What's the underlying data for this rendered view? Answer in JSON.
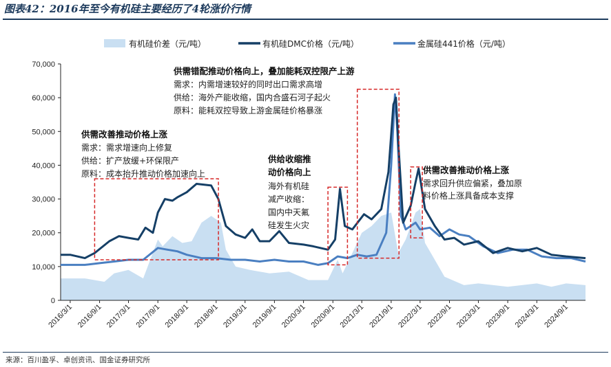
{
  "title": "图表42：2016年至今有机硅主要经历了4轮涨价行情",
  "source": "来源：百川盈孚、卓创资讯、国金证券研究所",
  "colors": {
    "spread": "#c9dff2",
    "dmc": "#153f66",
    "silicon": "#4a7fc1",
    "box": "#d62828",
    "axis": "#222222",
    "title": "#1c3a5c"
  },
  "annotations": [
    {
      "heading": "供需错配推动价格向上，叠加能耗双控限产上游",
      "lines": [
        "需求：内需增速较好的同时出口需求高增",
        "供给：海外产能收缩，国内合盛石河子起火",
        "原料：能耗双控导致上游金属硅价格暴涨"
      ]
    },
    {
      "heading": "供需改善推动价格上涨",
      "lines": [
        "需求：需求增速向上修复",
        "供给：扩产放缓+环保限产",
        "原料：成本抬升推动价格加速向上"
      ]
    },
    {
      "heading": "供给收缩推 动价格向上",
      "heading_lines": [
        "供给收缩推",
        "动价格向上"
      ],
      "lines": [
        "海外有机硅",
        "减产收缩：",
        "国内中天氟",
        "硅发生火灾"
      ]
    },
    {
      "heading": "供需改善推动价格上涨",
      "lines": [
        "需求回升供应偏紧，叠加原",
        "料价格上涨具备成本支撑"
      ]
    }
  ],
  "chart_data": {
    "type": "line",
    "title": "",
    "xlabel": "",
    "ylabel": "",
    "ylim": [
      0,
      70000
    ],
    "yticks": [
      "0",
      "10,000",
      "20,000",
      "30,000",
      "40,000",
      "50,000",
      "60,000",
      "70,000"
    ],
    "ytick_values": [
      0,
      10000,
      20000,
      30000,
      40000,
      50000,
      60000,
      70000
    ],
    "xticks": [
      "2016/3/1",
      "2016/9/1",
      "2017/3/1",
      "2017/9/1",
      "2018/3/1",
      "2018/9/1",
      "2019/3/1",
      "2019/9/1",
      "2020/3/1",
      "2020/9/1",
      "2021/3/1",
      "2021/9/1",
      "2022/3/1",
      "2022/9/1",
      "2023/3/1",
      "2023/9/1",
      "2024/3/1",
      "2024/9/1"
    ],
    "xrange": [
      "2016/1/1",
      "2024/12/31"
    ],
    "grid": false,
    "legend_position": "top",
    "series": [
      {
        "name": "有机硅价差（元/吨）",
        "kind": "area",
        "points": [
          [
            "2016/1/1",
            6500
          ],
          [
            "2016/6/1",
            6500
          ],
          [
            "2016/10/1",
            5500
          ],
          [
            "2016/12/1",
            8000
          ],
          [
            "2017/3/1",
            9000
          ],
          [
            "2017/6/1",
            6500
          ],
          [
            "2017/7/15",
            12000
          ],
          [
            "2017/9/1",
            18000
          ],
          [
            "2017/10/1",
            16000
          ],
          [
            "2017/12/1",
            19000
          ],
          [
            "2018/2/1",
            17000
          ],
          [
            "2018/4/1",
            17500
          ],
          [
            "2018/6/1",
            23000
          ],
          [
            "2018/8/1",
            25000
          ],
          [
            "2018/10/1",
            23000
          ],
          [
            "2018/11/1",
            15000
          ],
          [
            "2019/1/1",
            10000
          ],
          [
            "2019/4/1",
            9000
          ],
          [
            "2019/8/1",
            8000
          ],
          [
            "2019/12/1",
            8500
          ],
          [
            "2020/4/1",
            6000
          ],
          [
            "2020/8/1",
            6000
          ],
          [
            "2020/10/1",
            12000
          ],
          [
            "2020/11/1",
            8000
          ],
          [
            "2021/1/1",
            14000
          ],
          [
            "2021/3/1",
            20000
          ],
          [
            "2021/5/1",
            22000
          ],
          [
            "2021/7/1",
            25000
          ],
          [
            "2021/9/1",
            26000
          ],
          [
            "2021/10/15",
            14000
          ],
          [
            "2021/12/1",
            18000
          ],
          [
            "2022/2/1",
            26000
          ],
          [
            "2022/3/1",
            27000
          ],
          [
            "2022/4/1",
            17000
          ],
          [
            "2022/6/1",
            12000
          ],
          [
            "2022/8/1",
            7000
          ],
          [
            "2022/12/1",
            4500
          ],
          [
            "2023/3/1",
            5000
          ],
          [
            "2023/9/1",
            4000
          ],
          [
            "2024/3/1",
            5000
          ],
          [
            "2024/6/1",
            4000
          ],
          [
            "2024/9/1",
            5000
          ],
          [
            "2024/12/31",
            4500
          ]
        ]
      },
      {
        "name": "有机硅DMC价格（元/吨）",
        "kind": "line",
        "points": [
          [
            "2016/1/1",
            13500
          ],
          [
            "2016/3/1",
            13500
          ],
          [
            "2016/6/1",
            12500
          ],
          [
            "2016/8/1",
            14000
          ],
          [
            "2016/11/1",
            17500
          ],
          [
            "2017/1/1",
            19000
          ],
          [
            "2017/3/1",
            18500
          ],
          [
            "2017/5/1",
            18000
          ],
          [
            "2017/6/15",
            21500
          ],
          [
            "2017/8/1",
            20000
          ],
          [
            "2017/9/1",
            26000
          ],
          [
            "2017/10/15",
            30000
          ],
          [
            "2017/12/1",
            29500
          ],
          [
            "2018/1/1",
            30500
          ],
          [
            "2018/3/1",
            32000
          ],
          [
            "2018/5/1",
            34500
          ],
          [
            "2018/8/1",
            34000
          ],
          [
            "2018/9/15",
            30000
          ],
          [
            "2018/11/1",
            22000
          ],
          [
            "2019/1/1",
            19500
          ],
          [
            "2019/3/1",
            18500
          ],
          [
            "2019/4/15",
            21000
          ],
          [
            "2019/6/1",
            17500
          ],
          [
            "2019/8/1",
            17500
          ],
          [
            "2019/10/1",
            20500
          ],
          [
            "2019/12/1",
            17000
          ],
          [
            "2020/3/1",
            16500
          ],
          [
            "2020/5/1",
            16000
          ],
          [
            "2020/8/1",
            15000
          ],
          [
            "2020/9/15",
            18000
          ],
          [
            "2020/10/15",
            33000
          ],
          [
            "2020/11/15",
            22000
          ],
          [
            "2021/1/1",
            21000
          ],
          [
            "2021/3/15",
            25500
          ],
          [
            "2021/5/1",
            24000
          ],
          [
            "2021/7/1",
            27000
          ],
          [
            "2021/8/15",
            38000
          ],
          [
            "2021/9/15",
            58000
          ],
          [
            "2021/10/1",
            60000
          ],
          [
            "2021/10/15",
            47000
          ],
          [
            "2021/11/15",
            23000
          ],
          [
            "2022/1/1",
            28000
          ],
          [
            "2022/2/1",
            35000
          ],
          [
            "2022/2/20",
            39000
          ],
          [
            "2022/4/1",
            27000
          ],
          [
            "2022/6/1",
            22000
          ],
          [
            "2022/8/1",
            18000
          ],
          [
            "2022/10/1",
            18500
          ],
          [
            "2022/12/1",
            16500
          ],
          [
            "2023/3/1",
            17500
          ],
          [
            "2023/6/1",
            14000
          ],
          [
            "2023/9/1",
            15500
          ],
          [
            "2023/12/1",
            14500
          ],
          [
            "2024/3/1",
            15500
          ],
          [
            "2024/6/1",
            13500
          ],
          [
            "2024/9/1",
            13000
          ],
          [
            "2024/12/31",
            12500
          ]
        ]
      },
      {
        "name": "金属硅441价格（元/吨）",
        "kind": "line",
        "points": [
          [
            "2016/1/1",
            10500
          ],
          [
            "2016/6/1",
            10500
          ],
          [
            "2016/9/1",
            11000
          ],
          [
            "2016/12/1",
            11500
          ],
          [
            "2017/3/1",
            12000
          ],
          [
            "2017/6/1",
            12000
          ],
          [
            "2017/9/1",
            15500
          ],
          [
            "2017/11/1",
            15000
          ],
          [
            "2018/1/1",
            14500
          ],
          [
            "2018/3/1",
            13500
          ],
          [
            "2018/6/1",
            12500
          ],
          [
            "2018/9/1",
            12500
          ],
          [
            "2018/12/1",
            12000
          ],
          [
            "2019/3/1",
            12000
          ],
          [
            "2019/6/1",
            11500
          ],
          [
            "2019/9/1",
            12000
          ],
          [
            "2019/12/1",
            11500
          ],
          [
            "2020/3/1",
            11500
          ],
          [
            "2020/6/1",
            10500
          ],
          [
            "2020/8/1",
            11000
          ],
          [
            "2020/10/1",
            13000
          ],
          [
            "2020/12/1",
            12500
          ],
          [
            "2021/2/1",
            13500
          ],
          [
            "2021/4/1",
            13000
          ],
          [
            "2021/6/1",
            13500
          ],
          [
            "2021/8/1",
            20000
          ],
          [
            "2021/9/1",
            40000
          ],
          [
            "2021/9/25",
            61000
          ],
          [
            "2021/10/10",
            50000
          ],
          [
            "2021/11/1",
            25000
          ],
          [
            "2021/12/1",
            21000
          ],
          [
            "2022/2/1",
            23000
          ],
          [
            "2022/3/1",
            21000
          ],
          [
            "2022/5/1",
            21500
          ],
          [
            "2022/7/1",
            19000
          ],
          [
            "2022/9/1",
            21000
          ],
          [
            "2022/11/1",
            19500
          ],
          [
            "2023/1/1",
            19000
          ],
          [
            "2023/4/1",
            16000
          ],
          [
            "2023/7/1",
            14000
          ],
          [
            "2023/10/1",
            15000
          ],
          [
            "2024/1/1",
            15000
          ],
          [
            "2024/4/1",
            13000
          ],
          [
            "2024/7/1",
            12500
          ],
          [
            "2024/10/1",
            12500
          ],
          [
            "2024/12/31",
            11500
          ]
        ]
      }
    ],
    "highlight_boxes": [
      {
        "start": "2016/8/1",
        "end": "2018/9/15",
        "low": 12000,
        "high": 36000
      },
      {
        "start": "2020/8/1",
        "end": "2020/12/1",
        "low": 10500,
        "high": 33500
      },
      {
        "start": "2021/2/1",
        "end": "2021/10/20",
        "low": 12500,
        "high": 62500
      },
      {
        "start": "2022/1/1",
        "end": "2022/3/15",
        "low": 18500,
        "high": 39500
      }
    ]
  }
}
